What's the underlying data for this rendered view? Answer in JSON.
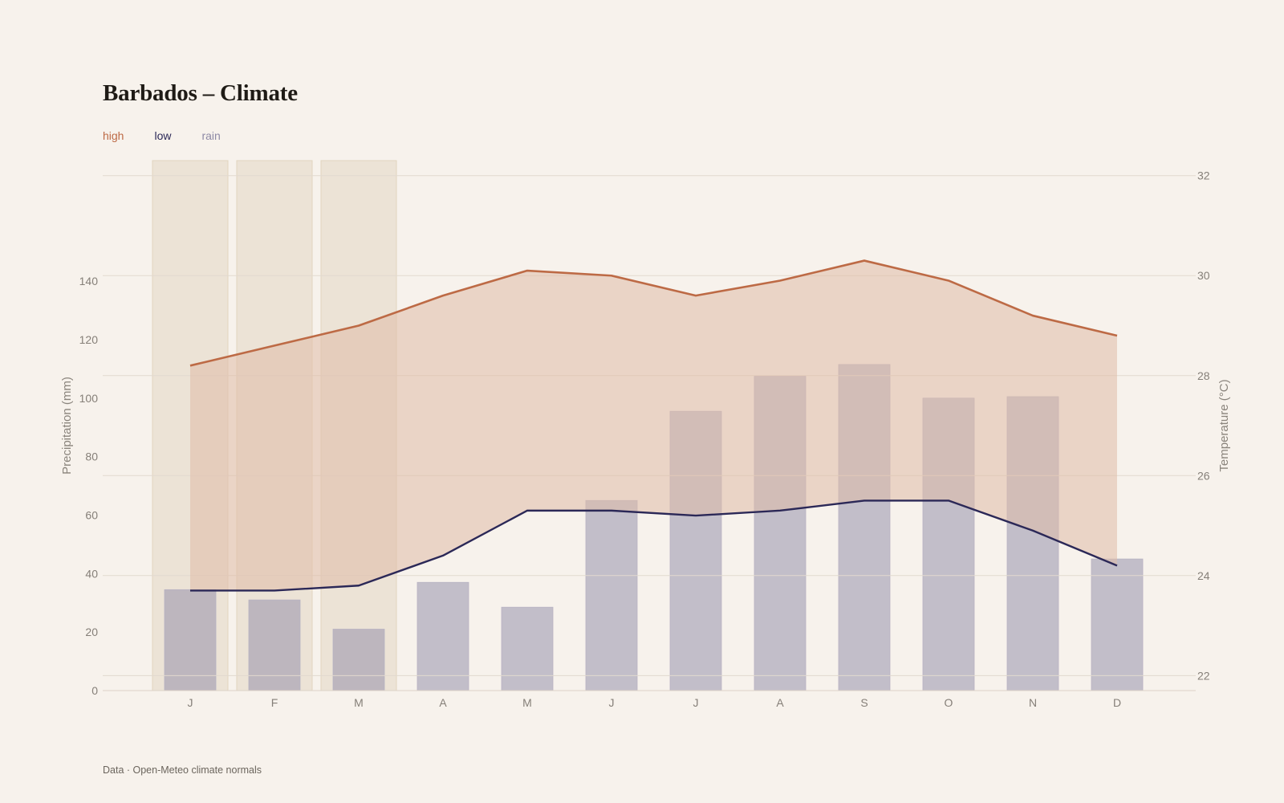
{
  "title": "Barbados – Climate",
  "legend": [
    {
      "label": "high",
      "color": "#bd6a45"
    },
    {
      "label": "low",
      "color": "#2b2857"
    },
    {
      "label": "rain",
      "color": "#8e8aa6"
    }
  ],
  "footer": "Data · Open-Meteo climate normals",
  "chart_data": {
    "type": "bar+line",
    "categories": [
      "J",
      "F",
      "M",
      "A",
      "M",
      "J",
      "J",
      "A",
      "S",
      "O",
      "N",
      "D"
    ],
    "highlighted_categories": [
      0,
      1,
      2
    ],
    "series": [
      {
        "name": "rain",
        "type": "bar",
        "axis": "left",
        "values": [
          34.5,
          31,
          21,
          37,
          28.5,
          65,
          95.5,
          107.5,
          111.5,
          100,
          100.5,
          45
        ]
      },
      {
        "name": "high",
        "type": "line",
        "axis": "right",
        "values": [
          28.2,
          28.6,
          29.0,
          29.6,
          30.1,
          30.0,
          29.6,
          29.9,
          30.3,
          29.9,
          29.2,
          28.8
        ]
      },
      {
        "name": "low",
        "type": "line",
        "axis": "right",
        "values": [
          23.7,
          23.7,
          23.8,
          24.4,
          25.3,
          25.3,
          25.2,
          25.3,
          25.5,
          25.5,
          24.9,
          24.2
        ]
      }
    ],
    "ylabel": "Precipitation (mm)",
    "ylabel_right": "Temperature (°C)",
    "yticks": [
      0,
      20,
      40,
      60,
      80,
      100,
      120,
      140
    ],
    "yticks_right": [
      22,
      24,
      26,
      28,
      30,
      32
    ],
    "ylim": [
      0,
      151.5
    ],
    "ylim_right": [
      21.7,
      32.3
    ],
    "grid": true,
    "colors": {
      "high": "#bd6a45",
      "low": "#2b2857",
      "rain": "#8e8aa6",
      "band_fill": "#e0bca8",
      "highlight": "#e2d4bf"
    }
  }
}
